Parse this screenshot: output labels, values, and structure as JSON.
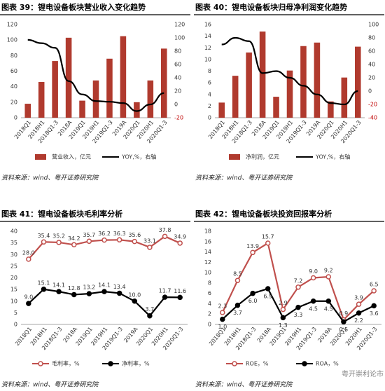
{
  "chart_data": [
    {
      "type": "combo",
      "title": "图表 39：锂电设备板块营业收入变化趋势",
      "source": "资料来源：wind、粤开证券研究院",
      "categories": [
        "2018Q1",
        "2018H1",
        "2018Q1-3",
        "2018A",
        "2019Q1",
        "2019H1",
        "2019Q1-3",
        "2019A",
        "2020Q1",
        "2020H1",
        "2020Q1-3"
      ],
      "series": [
        {
          "name": "营业收入，亿元",
          "color": "#b03a2e",
          "values": [
            18,
            46,
            73,
            103,
            22,
            48,
            76,
            105,
            20,
            48,
            89
          ]
        },
        {
          "name": "YOY,%，右轴",
          "color": "#000000",
          "axis": "y2",
          "values": [
            97,
            92,
            85,
            35,
            15,
            5,
            4,
            2,
            -10,
            0,
            17
          ]
        }
      ],
      "ylim": [
        0,
        120
      ],
      "yticks": [
        0,
        20,
        40,
        60,
        80,
        100,
        120
      ],
      "y2lim": [
        -20,
        120
      ],
      "y2ticks": [
        -20,
        0,
        20,
        40,
        60,
        80,
        100,
        120
      ],
      "grid": false
    },
    {
      "type": "combo",
      "title": "图表 40：锂电设备板块归母净利润变化趋势",
      "source": "资料来源：wind、粤开证券研究院",
      "categories": [
        "2018Q1",
        "2018H1",
        "2018Q1-3",
        "2018A",
        "2019Q1",
        "2019H1",
        "2019Q1-3",
        "2019A",
        "2020Q1",
        "2020H1",
        "2020Q1-3"
      ],
      "series": [
        {
          "name": "净利润，亿元",
          "color": "#b03a2e",
          "values": [
            2.6,
            7.2,
            11.2,
            14.8,
            3.6,
            8.1,
            12.3,
            12.9,
            2.8,
            6.9,
            12.2
          ]
        },
        {
          "name": "YOY,%，右轴",
          "color": "#000000",
          "axis": "y2",
          "values": [
            70,
            80,
            75,
            27,
            30,
            20,
            8,
            -5,
            -18,
            -20,
            0
          ]
        }
      ],
      "ylim": [
        0,
        16
      ],
      "yticks": [
        0,
        2,
        4,
        6,
        8,
        10,
        12,
        14,
        16
      ],
      "y2lim": [
        -40,
        100
      ],
      "y2ticks": [
        -40,
        -20,
        0,
        20,
        40,
        60,
        80,
        100
      ],
      "grid": false
    },
    {
      "type": "line",
      "title": "图表 41：锂电设备板块毛利率分析",
      "source": "资料来源：wind、粤开证券研究院",
      "categories": [
        "2018Q1",
        "2018H1",
        "2018Q1-3",
        "2018A",
        "2019Q1",
        "2019H1",
        "2019Q1-3",
        "2019A",
        "2020Q1",
        "2020H1",
        "2020Q1-3"
      ],
      "series": [
        {
          "name": "毛利率，%",
          "color": "#c0504d",
          "values": [
            28.0,
            35.4,
            35.2,
            34.2,
            35.7,
            36.2,
            36.3,
            35.6,
            33.1,
            37.8,
            34.9
          ],
          "value_labels": [
            "28.0",
            "35.4",
            "35.2",
            "34.2",
            "35.7",
            "36.2",
            "36.3",
            "35.6",
            "33.1",
            "37.8",
            "34.9"
          ]
        },
        {
          "name": "净利率，%",
          "color": "#000000",
          "values": [
            9.0,
            15.1,
            14.1,
            12.8,
            13.2,
            14.1,
            13.4,
            10.0,
            3.7,
            11.7,
            11.6
          ],
          "value_labels": [
            "9.0",
            "15.1",
            "14.1",
            "12.8",
            "13.2",
            "14.1",
            "13.4",
            "10.0",
            "3.7",
            "11.7",
            "11.6"
          ]
        }
      ],
      "ylim": [
        0,
        40
      ],
      "yticks": [
        0,
        5,
        10,
        15,
        20,
        25,
        30,
        35,
        40
      ],
      "grid": false
    },
    {
      "type": "line",
      "title": "图表 42：锂电设备板块投资回报率分析",
      "source": "资料来源：wind、粤开证券研究院",
      "categories": [
        "2018Q1",
        "2018H1",
        "2018Q1-3",
        "2018A",
        "2019Q1",
        "2019H1",
        "2019Q1-3",
        "2019A",
        "2020Q1",
        "2020H1",
        "2020Q1-3"
      ],
      "series": [
        {
          "name": "ROE，%",
          "color": "#c0504d",
          "values": [
            2.3,
            8.5,
            13.9,
            15.7,
            2.9,
            7.2,
            9.0,
            9.2,
            0.9,
            3.9,
            6.5
          ],
          "value_labels": [
            "2.3",
            "8.5",
            "13.9",
            "15.7",
            "2.9",
            "7.2",
            "9.0",
            "9.2",
            "0.9",
            "3.9",
            "6.5"
          ]
        },
        {
          "name": "ROA，%",
          "color": "#000000",
          "values": [
            1.0,
            3.7,
            6.0,
            6.9,
            1.3,
            3.3,
            4.5,
            4.5,
            0.5,
            2.2,
            3.6
          ],
          "value_labels": [
            "1.0",
            "3.7",
            "6.0",
            "6.9",
            "1.3",
            "3.3",
            "4.5",
            "4.5",
            "0.5",
            "2.2",
            "3.6"
          ]
        }
      ],
      "ylim": [
        0,
        18
      ],
      "yticks": [
        0,
        2,
        4,
        6,
        8,
        10,
        12,
        14,
        16,
        18
      ],
      "grid": false
    }
  ],
  "watermark": "粤开崇利论市"
}
